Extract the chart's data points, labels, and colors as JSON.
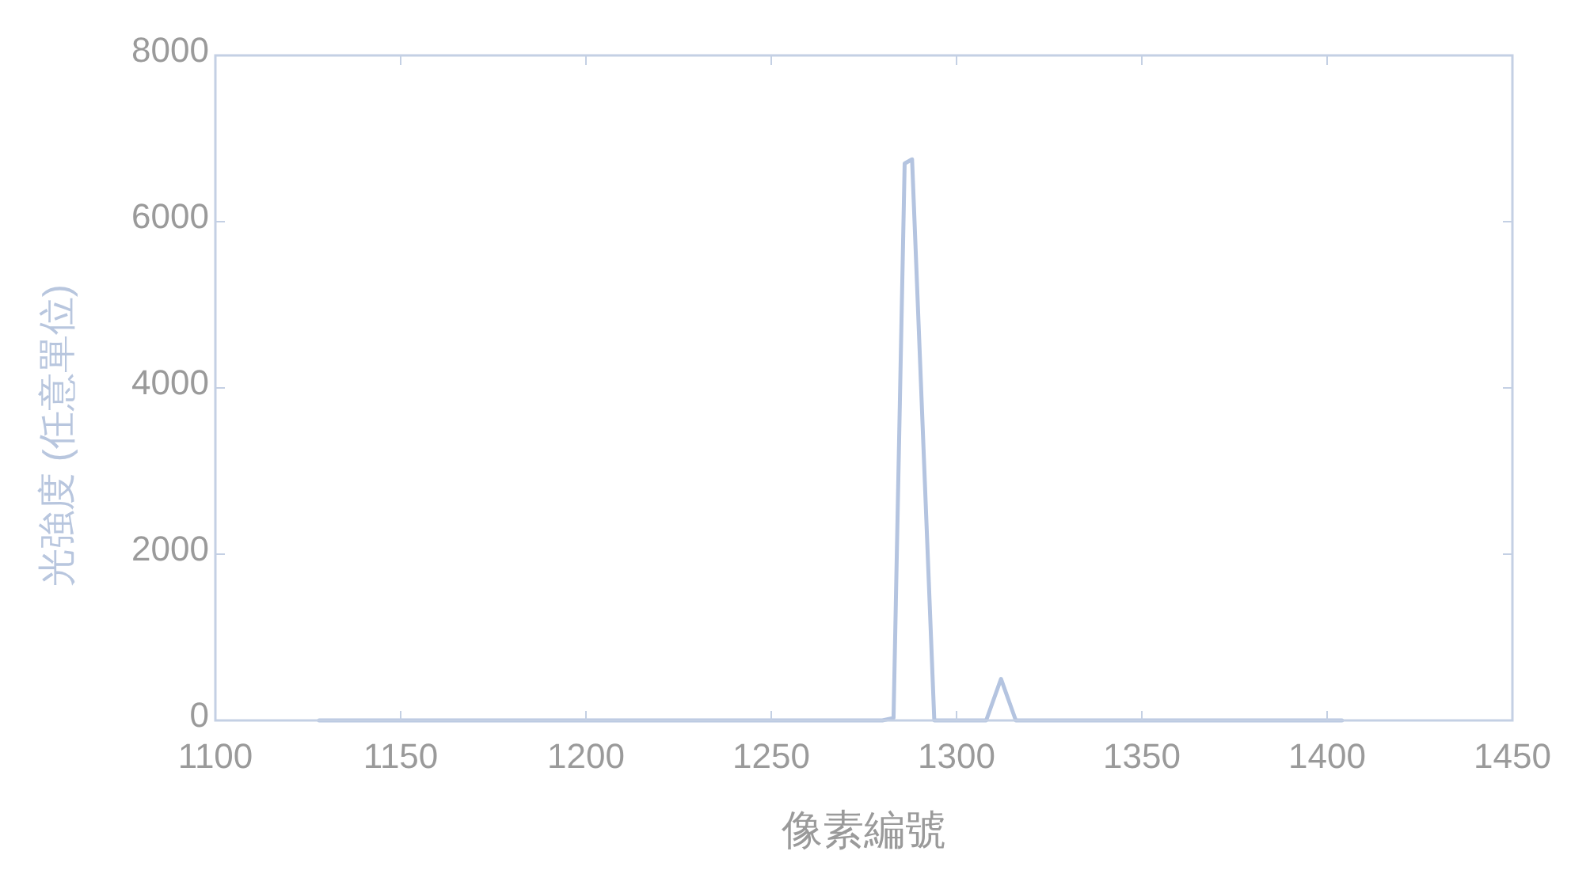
{
  "chart_data": {
    "type": "line",
    "xlabel": "像素編號",
    "ylabel": "光強度 (任意單位)",
    "xlim": [
      1100,
      1450
    ],
    "ylim": [
      0,
      8000
    ],
    "xticks": [
      1100,
      1150,
      1200,
      1250,
      1300,
      1350,
      1400,
      1450
    ],
    "yticks": [
      0,
      2000,
      4000,
      6000,
      8000
    ],
    "series": [
      {
        "color": "#b4c4e0",
        "x": [
          1128,
          1280,
          1283,
          1286,
          1288,
          1294,
          1308,
          1312,
          1316,
          1404
        ],
        "values": [
          0,
          0,
          30,
          6700,
          6750,
          0,
          0,
          500,
          0,
          0
        ]
      }
    ]
  }
}
